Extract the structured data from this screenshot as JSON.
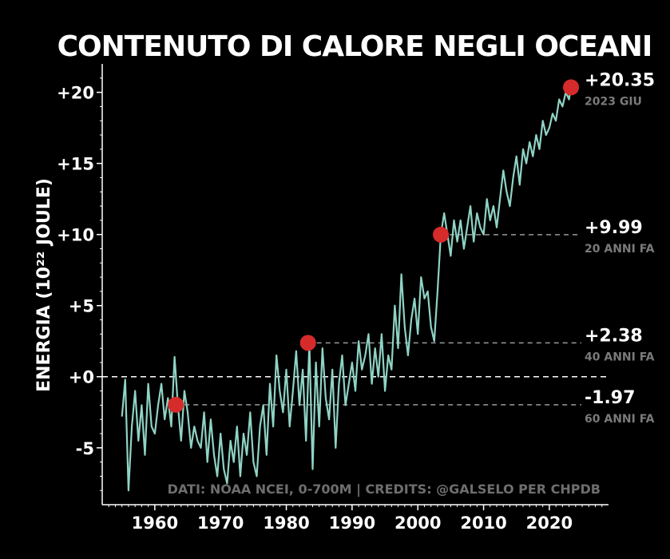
{
  "chart_data": {
    "type": "line",
    "title": "CONTENUTO DI CALORE NEGLI OCEANI",
    "ylabel": "ENERGIA (10²² JOULE)",
    "xlabel": "",
    "credits": "DATI: NOAA NCEI, 0-700M | CREDITS: @GALSELO PER CHPDB",
    "xlim": [
      1952,
      2029
    ],
    "ylim": [
      -9,
      22
    ],
    "x_ticks": [
      1960,
      1970,
      1980,
      1990,
      2000,
      2010,
      2020
    ],
    "x_tick_labels": [
      "1960",
      "1970",
      "1980",
      "1990",
      "2000",
      "2010",
      "2020"
    ],
    "y_ticks": [
      -5,
      0,
      5,
      10,
      15,
      20
    ],
    "y_tick_labels": [
      "-5",
      "+0",
      "+5",
      "+10",
      "+15",
      "+20"
    ],
    "grid": false,
    "colors": {
      "background": "#000000",
      "line": "#8fd3c4",
      "marker": "#d62b2b",
      "text": "#ffffff",
      "muted": "#7a7a7a",
      "dashed": "#9a9a9a"
    },
    "series": [
      {
        "x": [
          1955.0,
          1955.5,
          1956.0,
          1956.5,
          1957.0,
          1957.5,
          1958.0,
          1958.5,
          1959.0,
          1959.5,
          1960.0,
          1960.5,
          1961.0,
          1961.5,
          1962.0,
          1962.5,
          1963.0,
          1963.5,
          1964.0,
          1964.5,
          1965.0,
          1965.5,
          1966.0,
          1966.5,
          1967.0,
          1967.5,
          1968.0,
          1968.5,
          1969.0,
          1969.5,
          1970.0,
          1970.5,
          1971.0,
          1971.5,
          1972.0,
          1972.5,
          1973.0,
          1973.5,
          1974.0,
          1974.5,
          1975.0,
          1975.5,
          1976.0,
          1976.5,
          1977.0,
          1977.5,
          1978.0,
          1978.5,
          1979.0,
          1979.5,
          1980.0,
          1980.5,
          1981.0,
          1981.5,
          1982.0,
          1982.5,
          1983.0,
          1983.5,
          1984.0,
          1984.5,
          1985.0,
          1985.5,
          1986.0,
          1986.5,
          1987.0,
          1987.5,
          1988.0,
          1988.5,
          1989.0,
          1989.5,
          1990.0,
          1990.5,
          1991.0,
          1991.5,
          1992.0,
          1992.5,
          1993.0,
          1993.5,
          1994.0,
          1994.5,
          1995.0,
          1995.5,
          1996.0,
          1996.5,
          1997.0,
          1997.5,
          1998.0,
          1998.5,
          1999.0,
          1999.5,
          2000.0,
          2000.5,
          2001.0,
          2001.5,
          2002.0,
          2002.5,
          2003.0,
          2003.5,
          2004.0,
          2004.5,
          2005.0,
          2005.5,
          2006.0,
          2006.5,
          2007.0,
          2007.5,
          2008.0,
          2008.5,
          2009.0,
          2009.5,
          2010.0,
          2010.5,
          2011.0,
          2011.5,
          2012.0,
          2012.5,
          2013.0,
          2013.5,
          2014.0,
          2014.5,
          2015.0,
          2015.5,
          2016.0,
          2016.5,
          2017.0,
          2017.5,
          2018.0,
          2018.5,
          2019.0,
          2019.5,
          2020.0,
          2020.5,
          2021.0,
          2021.5,
          2022.0,
          2022.5,
          2023.0,
          2023.25
        ],
        "y": [
          -2.8,
          -0.2,
          -8.0,
          -3.5,
          -1.0,
          -4.5,
          -2.0,
          -5.5,
          -0.5,
          -3.5,
          -4.0,
          -2.0,
          -0.5,
          -3.0,
          -1.5,
          -3.5,
          1.4,
          -1.97,
          -4.5,
          -1.0,
          -2.5,
          -5.0,
          -3.5,
          -4.5,
          -5.0,
          -2.5,
          -6.0,
          -3.0,
          -5.5,
          -7.0,
          -4.0,
          -6.5,
          -7.5,
          -4.5,
          -6.0,
          -3.5,
          -7.0,
          -4.0,
          -5.5,
          -2.5,
          -6.0,
          -7.0,
          -3.5,
          -2.0,
          -5.5,
          -0.5,
          -3.5,
          1.5,
          -1.0,
          -2.5,
          0.5,
          -3.5,
          -1.0,
          1.8,
          -2.0,
          0.5,
          -4.5,
          2.38,
          -6.5,
          1.0,
          -3.5,
          2.0,
          -1.5,
          -3.0,
          0.5,
          -5.0,
          -0.5,
          1.5,
          -2.0,
          -0.5,
          1.0,
          -1.0,
          2.5,
          0.5,
          1.5,
          3.0,
          -0.5,
          2.0,
          0.0,
          3.0,
          -1.0,
          1.5,
          0.5,
          5.0,
          2.0,
          7.2,
          3.5,
          1.5,
          4.0,
          5.5,
          3.0,
          7.0,
          5.5,
          6.0,
          3.5,
          2.5,
          6.0,
          9.99,
          11.5,
          10.0,
          8.5,
          11.0,
          9.5,
          11.0,
          9.0,
          10.5,
          12.0,
          9.5,
          11.5,
          10.5,
          10.0,
          12.5,
          11.0,
          12.0,
          10.5,
          12.5,
          14.5,
          13.0,
          12.0,
          14.0,
          15.5,
          13.5,
          16.0,
          15.0,
          16.5,
          15.5,
          17.0,
          16.0,
          18.0,
          17.0,
          17.5,
          18.5,
          18.0,
          19.5,
          19.0,
          20.0,
          19.5,
          20.35
        ]
      }
    ],
    "highlights": [
      {
        "x": 1963.2,
        "y": -1.97,
        "value": "-1.97",
        "label": "60 ANNI FA"
      },
      {
        "x": 1983.3,
        "y": 2.38,
        "value": "+2.38",
        "label": "40 ANNI FA"
      },
      {
        "x": 2003.5,
        "y": 9.99,
        "value": "+9.99",
        "label": "20 ANNI FA"
      },
      {
        "x": 2023.3,
        "y": 20.35,
        "value": "+20.35",
        "label": "2023 GIU"
      }
    ]
  }
}
